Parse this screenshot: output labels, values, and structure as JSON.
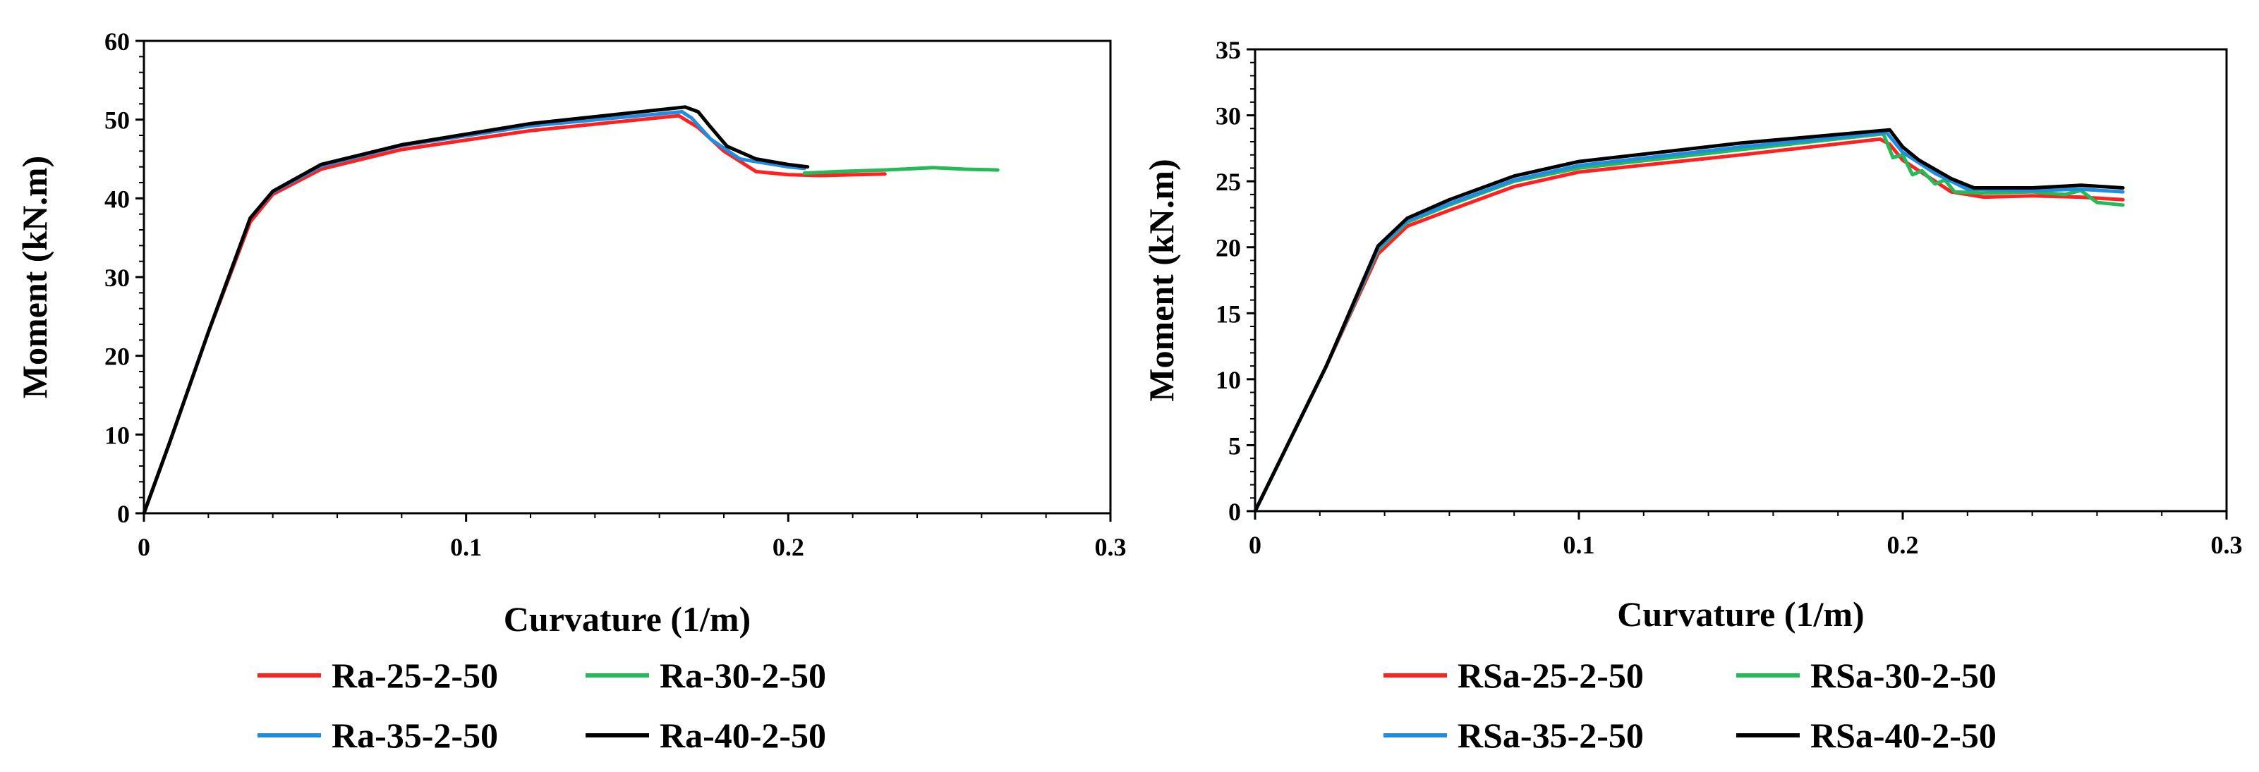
{
  "chart_data": [
    {
      "type": "line",
      "title": "",
      "xlabel": "Curvature (1/m)",
      "ylabel": "Moment (kN.m)",
      "xlim": [
        0,
        0.3
      ],
      "ylim": [
        0,
        60
      ],
      "xticks": [
        0,
        0.1,
        0.2,
        0.3
      ],
      "xtick_labels": [
        "0",
        "0.1",
        "0.2",
        "0.3"
      ],
      "yticks": [
        0,
        10,
        20,
        30,
        40,
        50,
        60
      ],
      "ytick_labels": [
        "0",
        "10",
        "20",
        "30",
        "40",
        "50",
        "60"
      ],
      "grid": false,
      "legend_position": "bottom",
      "series": [
        {
          "name": "Ra-25-2-50",
          "color": "#ff2020",
          "points": [
            [
              0,
              0
            ],
            [
              0.008,
              9
            ],
            [
              0.02,
              23
            ],
            [
              0.033,
              37
            ],
            [
              0.04,
              40.5
            ],
            [
              0.055,
              43.7
            ],
            [
              0.08,
              46.2
            ],
            [
              0.12,
              48.6
            ],
            [
              0.166,
              50.5
            ],
            [
              0.172,
              49
            ],
            [
              0.18,
              46
            ],
            [
              0.19,
              43.4
            ],
            [
              0.2,
              43
            ],
            [
              0.21,
              42.9
            ],
            [
              0.23,
              43.1
            ]
          ]
        },
        {
          "name": "Ra-30-2-50",
          "color": "#22bb55",
          "points": [
            [
              0.205,
              43.2
            ],
            [
              0.215,
              43.4
            ],
            [
              0.23,
              43.6
            ],
            [
              0.245,
              43.9
            ],
            [
              0.255,
              43.7
            ],
            [
              0.265,
              43.6
            ]
          ]
        },
        {
          "name": "Ra-35-2-50",
          "color": "#1f8ee0",
          "points": [
            [
              0,
              0
            ],
            [
              0.008,
              9
            ],
            [
              0.02,
              23
            ],
            [
              0.033,
              37.5
            ],
            [
              0.04,
              40.8
            ],
            [
              0.055,
              44.1
            ],
            [
              0.08,
              46.7
            ],
            [
              0.12,
              49.2
            ],
            [
              0.167,
              51
            ],
            [
              0.17,
              50.2
            ],
            [
              0.176,
              47.5
            ],
            [
              0.185,
              45
            ],
            [
              0.2,
              44
            ],
            [
              0.205,
              43.8
            ]
          ]
        },
        {
          "name": "Ra-40-2-50",
          "color": "#000000",
          "points": [
            [
              0,
              0
            ],
            [
              0.008,
              9
            ],
            [
              0.02,
              23
            ],
            [
              0.033,
              37.5
            ],
            [
              0.04,
              40.9
            ],
            [
              0.055,
              44.3
            ],
            [
              0.08,
              46.8
            ],
            [
              0.12,
              49.5
            ],
            [
              0.168,
              51.6
            ],
            [
              0.172,
              51
            ],
            [
              0.176,
              49
            ],
            [
              0.181,
              46.6
            ],
            [
              0.19,
              45
            ],
            [
              0.2,
              44.3
            ],
            [
              0.206,
              44
            ]
          ]
        }
      ]
    },
    {
      "type": "line",
      "title": "",
      "xlabel": "Curvature (1/m)",
      "ylabel": "Moment (kN.m)",
      "xlim": [
        0,
        0.3
      ],
      "ylim": [
        0,
        35
      ],
      "xticks": [
        0,
        0.1,
        0.2,
        0.3
      ],
      "xtick_labels": [
        "0",
        "0.1",
        "0.2",
        "0.3"
      ],
      "yticks": [
        0,
        5,
        10,
        15,
        20,
        25,
        30,
        35
      ],
      "ytick_labels": [
        "0",
        "5",
        "10",
        "15",
        "20",
        "25",
        "30",
        "35"
      ],
      "grid": false,
      "legend_position": "bottom",
      "series": [
        {
          "name": "RSa-25-2-50",
          "color": "#ff2020",
          "points": [
            [
              0,
              0
            ],
            [
              0.01,
              5
            ],
            [
              0.022,
              11
            ],
            [
              0.038,
              19.5
            ],
            [
              0.047,
              21.6
            ],
            [
              0.06,
              22.8
            ],
            [
              0.08,
              24.6
            ],
            [
              0.1,
              25.7
            ],
            [
              0.15,
              27
            ],
            [
              0.193,
              28.2
            ],
            [
              0.196,
              27.8
            ],
            [
              0.2,
              26.6
            ],
            [
              0.21,
              25
            ],
            [
              0.215,
              24.2
            ],
            [
              0.225,
              23.8
            ],
            [
              0.24,
              23.9
            ],
            [
              0.255,
              23.8
            ],
            [
              0.268,
              23.6
            ]
          ]
        },
        {
          "name": "RSa-30-2-50",
          "color": "#22bb55",
          "points": [
            [
              0,
              0
            ],
            [
              0.01,
              5
            ],
            [
              0.022,
              11
            ],
            [
              0.038,
              19.8
            ],
            [
              0.047,
              21.9
            ],
            [
              0.06,
              23.2
            ],
            [
              0.08,
              25
            ],
            [
              0.1,
              26
            ],
            [
              0.15,
              27.4
            ],
            [
              0.194,
              28.6
            ],
            [
              0.197,
              26.8
            ],
            [
              0.2,
              27
            ],
            [
              0.203,
              25.5
            ],
            [
              0.206,
              25.8
            ],
            [
              0.21,
              24.8
            ],
            [
              0.213,
              25.1
            ],
            [
              0.216,
              24.2
            ],
            [
              0.225,
              24.1
            ],
            [
              0.24,
              24.2
            ],
            [
              0.25,
              24
            ],
            [
              0.255,
              24.3
            ],
            [
              0.26,
              23.4
            ],
            [
              0.268,
              23.2
            ]
          ]
        },
        {
          "name": "RSa-35-2-50",
          "color": "#1f8ee0",
          "points": [
            [
              0,
              0
            ],
            [
              0.01,
              5
            ],
            [
              0.022,
              11
            ],
            [
              0.038,
              19.9
            ],
            [
              0.047,
              22
            ],
            [
              0.06,
              23.3
            ],
            [
              0.08,
              25.1
            ],
            [
              0.1,
              26.2
            ],
            [
              0.15,
              27.6
            ],
            [
              0.195,
              28.7
            ],
            [
              0.2,
              27.2
            ],
            [
              0.21,
              25.6
            ],
            [
              0.22,
              24.4
            ],
            [
              0.24,
              24.3
            ],
            [
              0.255,
              24.4
            ],
            [
              0.268,
              24.2
            ]
          ]
        },
        {
          "name": "RSa-40-2-50",
          "color": "#000000",
          "points": [
            [
              0,
              0
            ],
            [
              0.01,
              5
            ],
            [
              0.022,
              11
            ],
            [
              0.038,
              20.1
            ],
            [
              0.047,
              22.2
            ],
            [
              0.06,
              23.6
            ],
            [
              0.08,
              25.4
            ],
            [
              0.1,
              26.5
            ],
            [
              0.15,
              27.9
            ],
            [
              0.196,
              28.9
            ],
            [
              0.2,
              27.6
            ],
            [
              0.205,
              26.6
            ],
            [
              0.215,
              25.2
            ],
            [
              0.222,
              24.5
            ],
            [
              0.24,
              24.5
            ],
            [
              0.255,
              24.7
            ],
            [
              0.268,
              24.5
            ]
          ]
        }
      ]
    }
  ]
}
